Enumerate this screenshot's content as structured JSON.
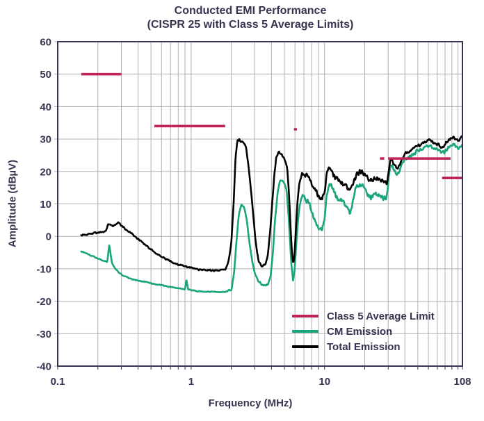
{
  "title": {
    "line1": "Conducted EMI Performance",
    "line2": "(CISPR 25 with Class 5 Average Limits)"
  },
  "axes": {
    "x": {
      "label": "Frequency (MHz)",
      "ticks": [
        "0.1",
        "1",
        "10",
        "108"
      ],
      "tick_values": [
        0.1,
        1,
        10,
        108
      ]
    },
    "y": {
      "label": "Amplitude (dBµV)",
      "ticks": [
        "60",
        "50",
        "40",
        "30",
        "20",
        "10",
        "0",
        "-10",
        "-20",
        "-30",
        "-40"
      ]
    }
  },
  "legend": {
    "items": [
      {
        "label": "Class 5 Average Limit",
        "color": "#bf2457"
      },
      {
        "label": "CM Emission",
        "color": "#1aa57d"
      },
      {
        "label": "Total Emission",
        "color": "#000000"
      }
    ]
  },
  "colors": {
    "text": "#363450",
    "grid": "#b0b0b0",
    "axis_border": "#363450",
    "limit": "#bf2457",
    "cm": "#1aa57d",
    "total": "#000000",
    "background": "#ffffff"
  },
  "chart_data": {
    "type": "line",
    "title": "Conducted EMI Performance (CISPR 25 with Class 5 Average Limits)",
    "xlabel": "Frequency (MHz)",
    "ylabel": "Amplitude (dBµV)",
    "xscale": "log",
    "xlim": [
      0.1,
      108
    ],
    "ylim": [
      -40,
      60
    ],
    "grid": true,
    "legend_position": "lower right",
    "limit_segments": [
      {
        "name": "Class 5 Average Limit",
        "band_mhz": [
          0.15,
          0.3
        ],
        "level_dbuv": 50
      },
      {
        "name": "Class 5 Average Limit",
        "band_mhz": [
          0.53,
          1.8
        ],
        "level_dbuv": 34
      },
      {
        "name": "Class 5 Average Limit",
        "band_mhz": [
          5.9,
          6.2
        ],
        "level_dbuv": 33
      },
      {
        "name": "Class 5 Average Limit",
        "band_mhz": [
          26,
          28
        ],
        "level_dbuv": 24
      },
      {
        "name": "Class 5 Average Limit",
        "band_mhz": [
          30,
          88
        ],
        "level_dbuv": 24
      },
      {
        "name": "Class 5 Average Limit",
        "band_mhz": [
          76,
          108
        ],
        "level_dbuv": 18
      }
    ],
    "series": [
      {
        "name": "CM Emission",
        "color": "#1aa57d",
        "points": [
          [
            0.15,
            -4.6
          ],
          [
            0.18,
            -6
          ],
          [
            0.21,
            -7.2
          ],
          [
            0.235,
            -7.9
          ],
          [
            0.243,
            -2.5
          ],
          [
            0.255,
            -8.3
          ],
          [
            0.28,
            -10.8
          ],
          [
            0.31,
            -12.2
          ],
          [
            0.36,
            -13.2
          ],
          [
            0.42,
            -13.8
          ],
          [
            0.46,
            -14.1
          ],
          [
            0.52,
            -14.6
          ],
          [
            0.59,
            -15
          ],
          [
            0.66,
            -15.4
          ],
          [
            0.74,
            -15.8
          ],
          [
            0.83,
            -16.1
          ],
          [
            0.9,
            -16.3
          ],
          [
            0.92,
            -13.2
          ],
          [
            0.95,
            -16.4
          ],
          [
            1.1,
            -16.9
          ],
          [
            1.4,
            -17.1
          ],
          [
            1.8,
            -17.1
          ],
          [
            2.0,
            -16.6
          ],
          [
            2.1,
            -11
          ],
          [
            2.18,
            -2
          ],
          [
            2.28,
            7
          ],
          [
            2.38,
            9.8
          ],
          [
            2.5,
            8.8
          ],
          [
            2.6,
            5.5
          ],
          [
            2.7,
            0
          ],
          [
            2.85,
            -7
          ],
          [
            3.0,
            -11.5
          ],
          [
            3.2,
            -14
          ],
          [
            3.5,
            -15.3
          ],
          [
            3.75,
            -15
          ],
          [
            3.95,
            -12
          ],
          [
            4.1,
            -5
          ],
          [
            4.25,
            5
          ],
          [
            4.45,
            13.5
          ],
          [
            4.65,
            17.3
          ],
          [
            4.85,
            17
          ],
          [
            5.05,
            16.2
          ],
          [
            5.2,
            14
          ],
          [
            5.35,
            8
          ],
          [
            5.5,
            -1
          ],
          [
            5.65,
            -9
          ],
          [
            5.8,
            -13.4
          ],
          [
            5.95,
            -11
          ],
          [
            6.1,
            -4
          ],
          [
            6.3,
            4
          ],
          [
            6.5,
            9.5
          ],
          [
            6.75,
            12
          ],
          [
            7.0,
            12.3
          ],
          [
            7.3,
            11.2
          ],
          [
            7.7,
            10
          ],
          [
            8.2,
            6.5
          ],
          [
            8.7,
            3.6
          ],
          [
            9.2,
            2.4
          ],
          [
            9.6,
            2.2
          ],
          [
            10,
            5.5
          ],
          [
            10.4,
            13
          ],
          [
            10.8,
            16.3
          ],
          [
            11.4,
            15
          ],
          [
            12.1,
            12.2
          ],
          [
            12.9,
            11.6
          ],
          [
            13.6,
            11.1
          ],
          [
            14.5,
            9.6
          ],
          [
            15.4,
            7.2
          ],
          [
            16.2,
            10.5
          ],
          [
            17.3,
            15.4
          ],
          [
            18.4,
            15.7
          ],
          [
            19.6,
            15.4
          ],
          [
            20.8,
            13.6
          ],
          [
            22,
            12.2
          ],
          [
            23.4,
            12.9
          ],
          [
            24.8,
            13.2
          ],
          [
            26.4,
            12.3
          ],
          [
            28,
            11.8
          ],
          [
            29.4,
            12.4
          ],
          [
            30.2,
            18
          ],
          [
            31,
            21.3
          ],
          [
            32,
            21.6
          ],
          [
            33.5,
            19.9
          ],
          [
            35,
            19.2
          ],
          [
            36.5,
            20.4
          ],
          [
            38,
            22
          ],
          [
            40,
            23.8
          ],
          [
            43,
            24.4
          ],
          [
            46,
            25.1
          ],
          [
            49,
            26.2
          ],
          [
            53,
            26.8
          ],
          [
            57,
            27.4
          ],
          [
            60,
            28
          ],
          [
            64,
            27.7
          ],
          [
            68,
            27.1
          ],
          [
            72,
            26.6
          ],
          [
            76,
            25.8
          ],
          [
            80,
            26.2
          ],
          [
            84,
            27.2
          ],
          [
            88,
            28
          ],
          [
            93,
            28.3
          ],
          [
            97,
            27.6
          ],
          [
            100,
            27.1
          ],
          [
            104,
            27.7
          ],
          [
            108,
            28.4
          ]
        ]
      },
      {
        "name": "Total Emission",
        "color": "#000000",
        "points": [
          [
            0.15,
            0.3
          ],
          [
            0.18,
            0.9
          ],
          [
            0.23,
            1.5
          ],
          [
            0.238,
            3.7
          ],
          [
            0.26,
            3.3
          ],
          [
            0.285,
            4.2
          ],
          [
            0.31,
            2.9
          ],
          [
            0.33,
            1.8
          ],
          [
            0.36,
            0.8
          ],
          [
            0.4,
            -0.8
          ],
          [
            0.46,
            -2.8
          ],
          [
            0.52,
            -4.6
          ],
          [
            0.58,
            -6
          ],
          [
            0.66,
            -7.2
          ],
          [
            0.74,
            -8.2
          ],
          [
            0.83,
            -8.9
          ],
          [
            0.94,
            -9.4
          ],
          [
            1.1,
            -10.2
          ],
          [
            1.5,
            -10.5
          ],
          [
            1.8,
            -10.3
          ],
          [
            1.9,
            -8
          ],
          [
            2.0,
            -2
          ],
          [
            2.08,
            10
          ],
          [
            2.15,
            24
          ],
          [
            2.22,
            29.5
          ],
          [
            2.3,
            29.8
          ],
          [
            2.4,
            29
          ],
          [
            2.5,
            28.6
          ],
          [
            2.58,
            27.5
          ],
          [
            2.65,
            24
          ],
          [
            2.75,
            18
          ],
          [
            2.9,
            8
          ],
          [
            3.05,
            -2
          ],
          [
            3.2,
            -7.5
          ],
          [
            3.4,
            -9.2
          ],
          [
            3.6,
            -8.8
          ],
          [
            3.75,
            -6
          ],
          [
            3.9,
            1
          ],
          [
            4.05,
            10
          ],
          [
            4.2,
            19
          ],
          [
            4.35,
            24.5
          ],
          [
            4.55,
            26
          ],
          [
            4.75,
            25.2
          ],
          [
            4.95,
            24.2
          ],
          [
            5.1,
            23.2
          ],
          [
            5.25,
            21
          ],
          [
            5.4,
            14
          ],
          [
            5.55,
            3
          ],
          [
            5.7,
            -5
          ],
          [
            5.82,
            -8.5
          ],
          [
            5.95,
            -6
          ],
          [
            6.1,
            2
          ],
          [
            6.25,
            10
          ],
          [
            6.45,
            16
          ],
          [
            6.7,
            18.8
          ],
          [
            6.95,
            19.2
          ],
          [
            7.3,
            18.5
          ],
          [
            7.7,
            17.8
          ],
          [
            8.2,
            15.5
          ],
          [
            8.7,
            13.3
          ],
          [
            9.2,
            11.8
          ],
          [
            9.6,
            11.4
          ],
          [
            10,
            13.5
          ],
          [
            10.4,
            19
          ],
          [
            10.8,
            21.2
          ],
          [
            11.4,
            20.2
          ],
          [
            12.1,
            17.9
          ],
          [
            12.9,
            17.3
          ],
          [
            13.6,
            16.8
          ],
          [
            14.5,
            15.6
          ],
          [
            15.4,
            13.8
          ],
          [
            16.2,
            15.8
          ],
          [
            17.3,
            19
          ],
          [
            18.4,
            19.9
          ],
          [
            19.6,
            19.7
          ],
          [
            20.8,
            18.3
          ],
          [
            22,
            17.2
          ],
          [
            23.4,
            17.7
          ],
          [
            24.8,
            17.9
          ],
          [
            26.4,
            16.9
          ],
          [
            28,
            16.1
          ],
          [
            29.4,
            16.6
          ],
          [
            30.2,
            20
          ],
          [
            31,
            23.4
          ],
          [
            32,
            23.7
          ],
          [
            33.5,
            21.8
          ],
          [
            35,
            20.9
          ],
          [
            36.5,
            22.1
          ],
          [
            38,
            23.9
          ],
          [
            40,
            25.5
          ],
          [
            43,
            26.2
          ],
          [
            46,
            26.9
          ],
          [
            49,
            27.8
          ],
          [
            53,
            28.4
          ],
          [
            57,
            29.2
          ],
          [
            60,
            29.6
          ],
          [
            64,
            29.3
          ],
          [
            68,
            28.6
          ],
          [
            72,
            28.1
          ],
          [
            76,
            27.3
          ],
          [
            80,
            28.4
          ],
          [
            84,
            29.4
          ],
          [
            88,
            30
          ],
          [
            93,
            30.3
          ],
          [
            97,
            29.8
          ],
          [
            100,
            29.6
          ],
          [
            104,
            30.2
          ],
          [
            108,
            30.8
          ]
        ]
      }
    ]
  }
}
